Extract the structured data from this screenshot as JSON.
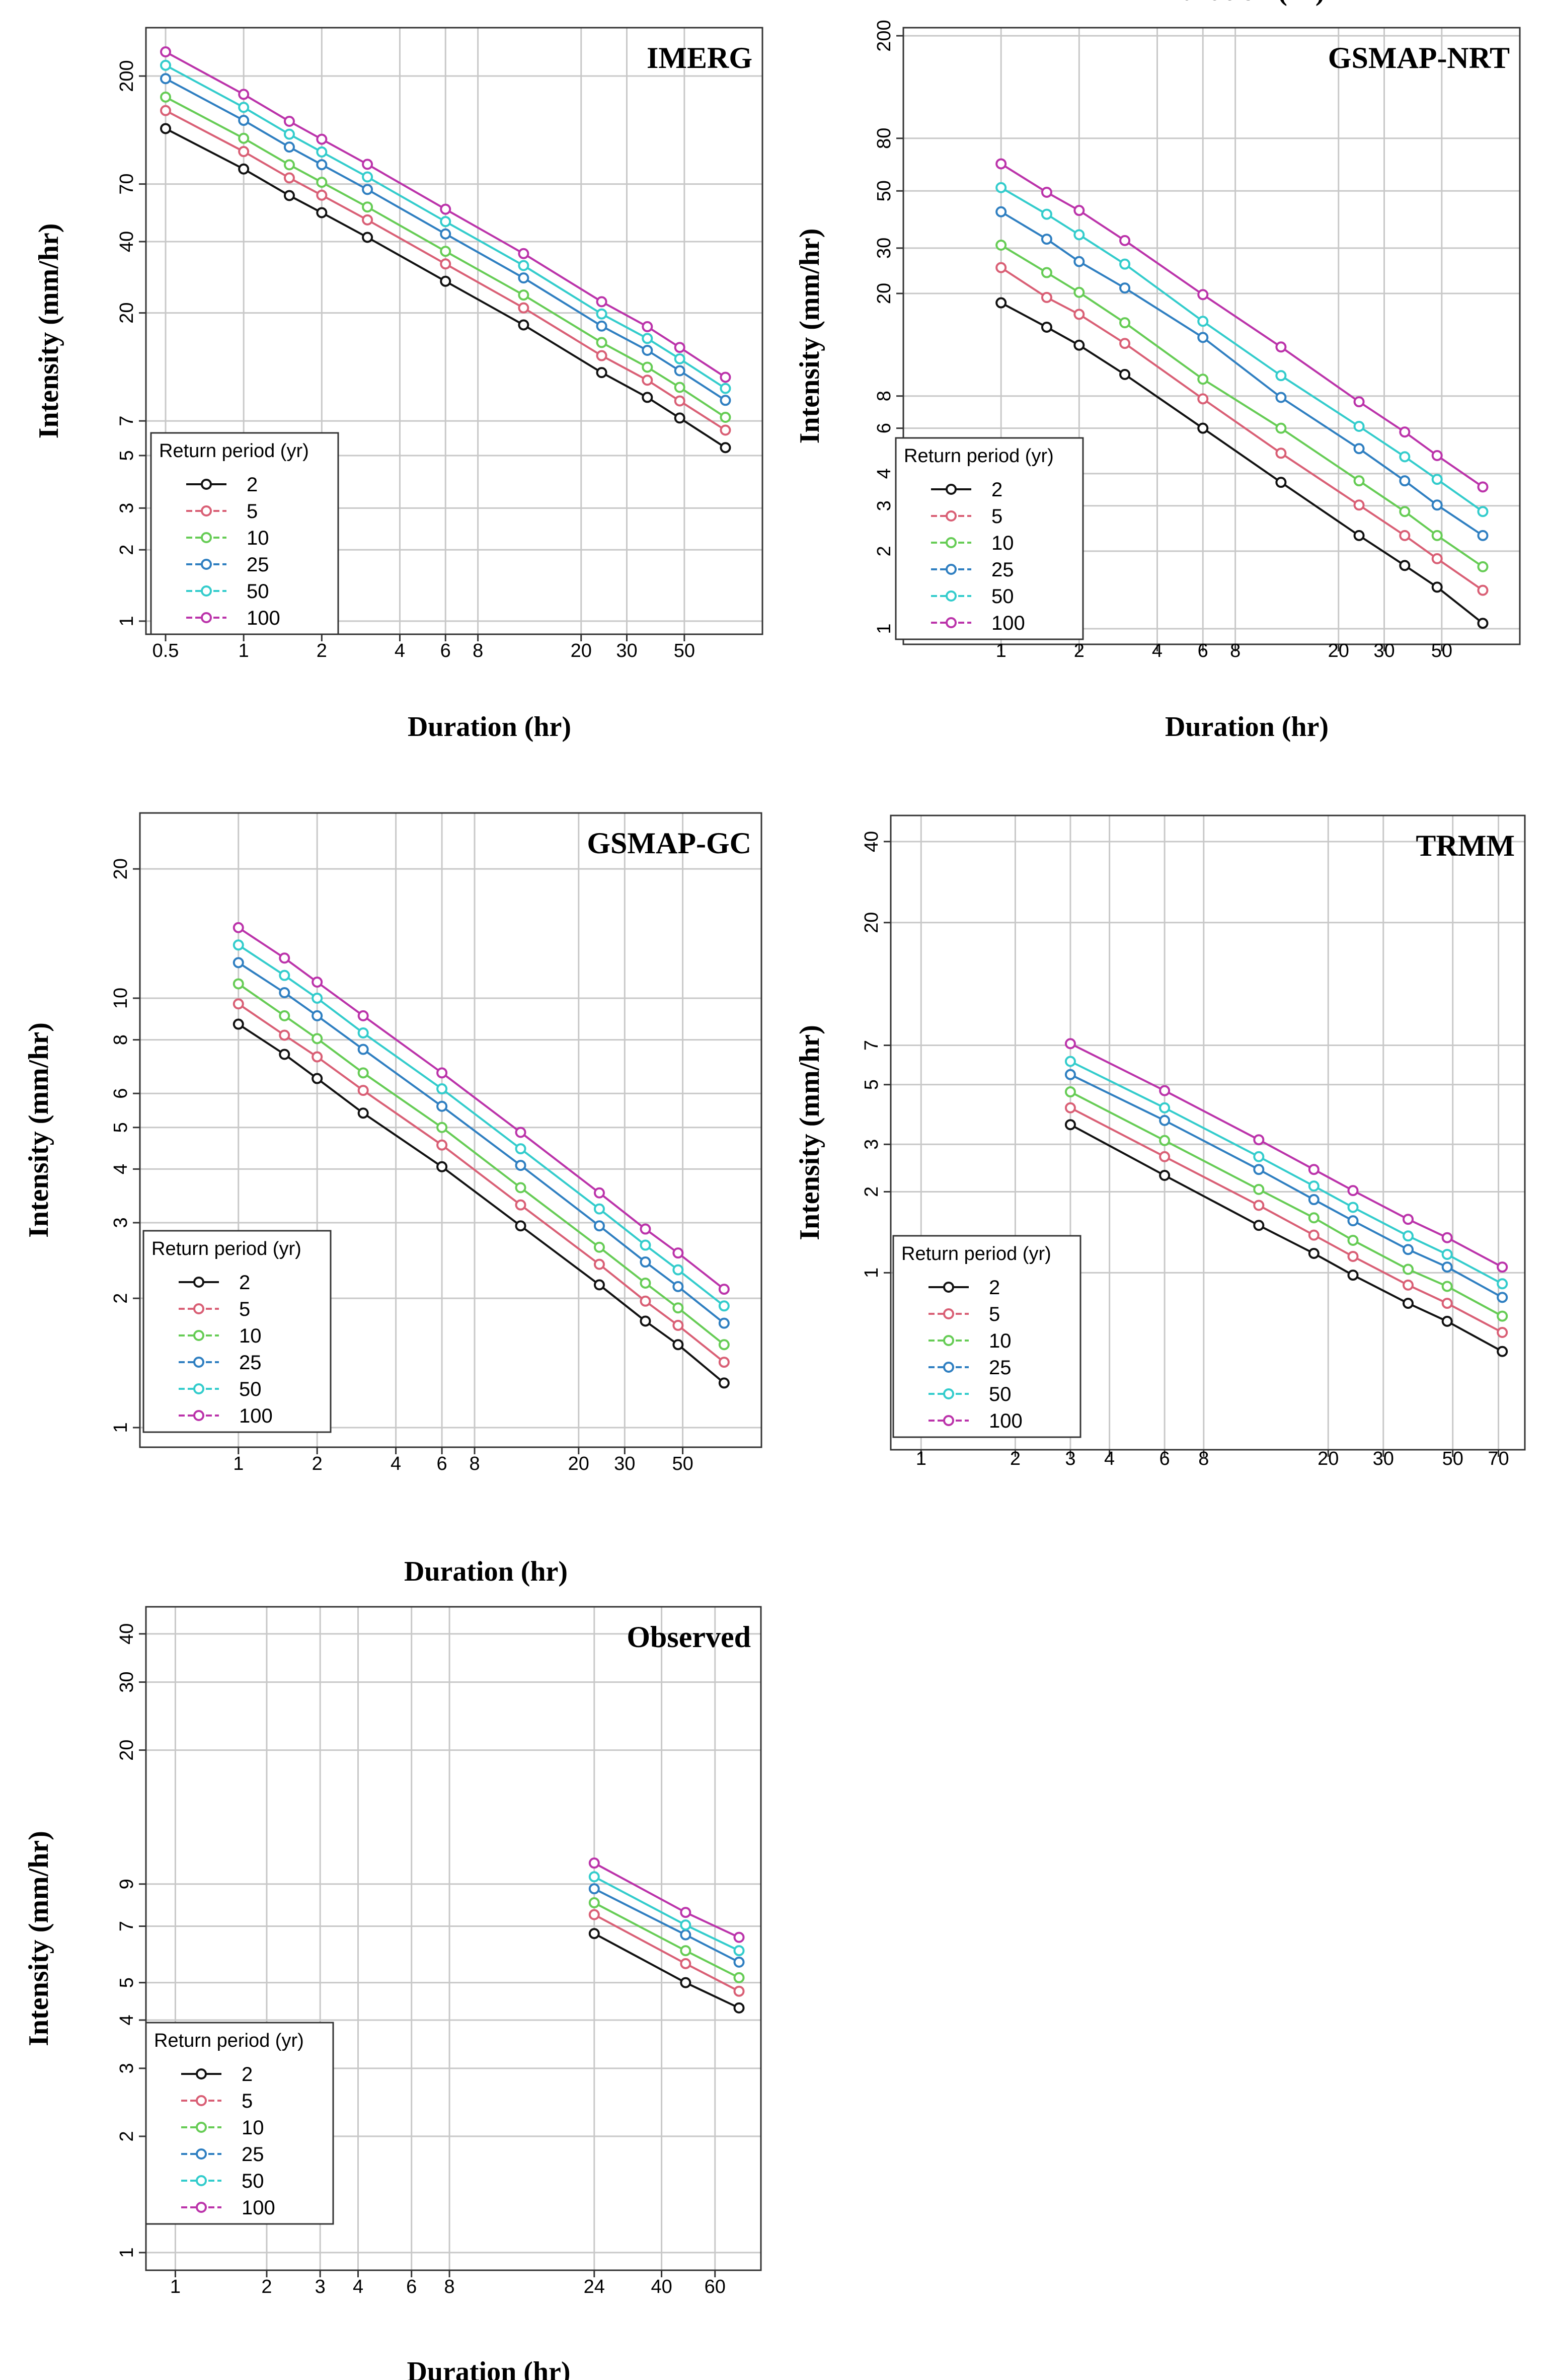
{
  "chart_data": [
    {
      "type": "line",
      "title": "IMERG",
      "xlabel": "Duration (hr)",
      "ylabel": "Intensity (mm/hr)",
      "xlim": [
        0.42,
        100
      ],
      "ylim": [
        0.88,
        320
      ],
      "x_ticks": [
        "0.5",
        "1",
        "2",
        "4",
        "6",
        "8",
        "20",
        "30",
        "50"
      ],
      "y_ticks": [
        "1",
        "2",
        "3",
        "5",
        "7",
        "20",
        "40",
        "70",
        "200"
      ],
      "x": [
        0.5,
        1,
        1.5,
        2,
        3,
        6,
        12,
        24,
        36,
        48,
        72
      ],
      "legend_title": "Return period (yr)",
      "series": [
        {
          "name": "2",
          "color": "#111111",
          "values": [
            120,
            81,
            62.6,
            53,
            41.7,
            27.2,
            17.8,
            11.2,
            8.8,
            7.2,
            5.4
          ]
        },
        {
          "name": "5",
          "color": "#d95f75",
          "values": [
            143,
            96,
            74.3,
            62.8,
            49.4,
            32.2,
            21,
            13.2,
            10.4,
            8.5,
            6.4
          ]
        },
        {
          "name": "10",
          "color": "#66cc55",
          "values": [
            163,
            109.2,
            84.4,
            71.2,
            56,
            36.4,
            23.8,
            15,
            11.8,
            9.7,
            7.25
          ]
        },
        {
          "name": "25",
          "color": "#2f7fc1",
          "values": [
            195,
            130,
            100.3,
            84.5,
            66.4,
            43.1,
            28.1,
            17.6,
            13.9,
            11.4,
            8.55
          ]
        },
        {
          "name": "50",
          "color": "#33cccc",
          "values": [
            222,
            147.5,
            113.6,
            95.6,
            75,
            48.6,
            31.7,
            19.8,
            15.6,
            12.8,
            9.6
          ]
        },
        {
          "name": "100",
          "color": "#bb33aa",
          "values": [
            253,
            167.4,
            128.8,
            108.2,
            84.8,
            54.8,
            35.6,
            22.3,
            17.5,
            14.3,
            10.7
          ]
        }
      ]
    },
    {
      "type": "line",
      "title": "GSMAP-NRT",
      "xlabel": "Duration (hr)",
      "ylabel": "Intensity (mm/hr)",
      "xlim": [
        0.42,
        100
      ],
      "ylim": [
        0.87,
        215
      ],
      "x_ticks": [
        "1",
        "2",
        "4",
        "6",
        "8",
        "20",
        "30",
        "50"
      ],
      "y_ticks": [
        "1",
        "2",
        "3",
        "4",
        "6",
        "8",
        "20",
        "30",
        "50",
        "80",
        "200"
      ],
      "x": [
        1,
        1.5,
        2,
        3,
        6,
        12,
        24,
        36,
        48,
        72
      ],
      "legend_title": "Return period (yr)",
      "series": [
        {
          "name": "2",
          "color": "#111111",
          "values": [
            18.4,
            14.8,
            12.6,
            9.7,
            6,
            3.7,
            2.3,
            1.76,
            1.45,
            1.05
          ]
        },
        {
          "name": "5",
          "color": "#d95f75",
          "values": [
            25.2,
            19.3,
            16.6,
            12.8,
            7.8,
            4.8,
            3.02,
            2.3,
            1.87,
            1.41
          ]
        },
        {
          "name": "10",
          "color": "#66cc55",
          "values": [
            30.8,
            24.1,
            20.2,
            15.4,
            9.3,
            6,
            3.75,
            2.85,
            2.3,
            1.74
          ]
        },
        {
          "name": "25",
          "color": "#2f7fc1",
          "values": [
            41.5,
            32.5,
            26.6,
            21,
            13.5,
            7.9,
            5,
            3.75,
            3.02,
            2.3
          ]
        },
        {
          "name": "50",
          "color": "#33cccc",
          "values": [
            51.5,
            40.6,
            33.8,
            26,
            15.6,
            9.6,
            6.1,
            4.65,
            3.8,
            2.85
          ]
        },
        {
          "name": "100",
          "color": "#bb33aa",
          "values": [
            63.7,
            49.4,
            42,
            32.1,
            19.8,
            12.4,
            7.6,
            5.8,
            4.7,
            3.55
          ]
        }
      ]
    },
    {
      "type": "line",
      "title": "GSMAP-GC",
      "xlabel": "Duration (hr)",
      "ylabel": "Intensity (mm/hr)",
      "xlim": [
        0.42,
        100
      ],
      "ylim": [
        0.9,
        27
      ],
      "x_ticks": [
        "1",
        "2",
        "4",
        "6",
        "8",
        "20",
        "30",
        "50"
      ],
      "y_ticks": [
        "1",
        "2",
        "3",
        "4",
        "5",
        "6",
        "8",
        "10",
        "20"
      ],
      "x": [
        1,
        1.5,
        2,
        3,
        6,
        12,
        24,
        36,
        48,
        72
      ],
      "legend_title": "Return period (yr)",
      "series": [
        {
          "name": "2",
          "color": "#111111",
          "values": [
            8.7,
            7.4,
            6.5,
            5.4,
            4.05,
            2.95,
            2.15,
            1.77,
            1.56,
            1.27
          ]
        },
        {
          "name": "5",
          "color": "#d95f75",
          "values": [
            9.7,
            8.2,
            7.3,
            6.1,
            4.55,
            3.3,
            2.4,
            1.97,
            1.73,
            1.42
          ]
        },
        {
          "name": "10",
          "color": "#66cc55",
          "values": [
            10.8,
            9.1,
            8.05,
            6.7,
            5,
            3.62,
            2.63,
            2.17,
            1.9,
            1.56
          ]
        },
        {
          "name": "25",
          "color": "#2f7fc1",
          "values": [
            12.1,
            10.3,
            9.1,
            7.6,
            5.6,
            4.08,
            2.95,
            2.43,
            2.13,
            1.75
          ]
        },
        {
          "name": "50",
          "color": "#33cccc",
          "values": [
            13.3,
            11.3,
            10,
            8.3,
            6.15,
            4.46,
            3.23,
            2.66,
            2.33,
            1.92
          ]
        },
        {
          "name": "100",
          "color": "#bb33aa",
          "values": [
            14.6,
            12.4,
            10.9,
            9.1,
            6.7,
            4.87,
            3.52,
            2.9,
            2.55,
            2.1
          ]
        }
      ]
    },
    {
      "type": "line",
      "title": "TRMM",
      "xlabel": "Duration (hr)",
      "ylabel": "Intensity (mm/hr)",
      "xlim": [
        0.8,
        85
      ],
      "ylim": [
        0.22,
        50
      ],
      "x_ticks": [
        "1",
        "2",
        "3",
        "4",
        "6",
        "8",
        "20",
        "30",
        "50",
        "70"
      ],
      "y_ticks": [
        "1",
        "2",
        "3",
        "5",
        "7",
        "20",
        "40"
      ],
      "x": [
        3,
        6,
        12,
        18,
        24,
        36,
        48,
        72
      ],
      "legend_title": "Return period (yr)",
      "series": [
        {
          "name": "2",
          "color": "#111111",
          "values": [
            3.55,
            2.3,
            1.5,
            1.18,
            0.98,
            0.77,
            0.66,
            0.51
          ]
        },
        {
          "name": "5",
          "color": "#d95f75",
          "values": [
            4.1,
            2.7,
            1.78,
            1.38,
            1.15,
            0.9,
            0.77,
            0.6
          ]
        },
        {
          "name": "10",
          "color": "#66cc55",
          "values": [
            4.7,
            3.1,
            2.04,
            1.6,
            1.32,
            1.03,
            0.89,
            0.69
          ]
        },
        {
          "name": "25",
          "color": "#2f7fc1",
          "values": [
            5.45,
            3.68,
            2.42,
            1.87,
            1.56,
            1.22,
            1.05,
            0.81
          ]
        },
        {
          "name": "50",
          "color": "#33cccc",
          "values": [
            6.1,
            4.1,
            2.7,
            2.1,
            1.75,
            1.37,
            1.17,
            0.91
          ]
        },
        {
          "name": "100",
          "color": "#bb33aa",
          "values": [
            7.1,
            4.75,
            3.12,
            2.42,
            2.02,
            1.58,
            1.35,
            1.05
          ]
        }
      ]
    },
    {
      "type": "line",
      "title": "Observed",
      "xlabel": "Duration (hr)",
      "ylabel": "Intensity (mm/hr)",
      "xlim": [
        0.8,
        85
      ],
      "ylim": [
        0.9,
        47
      ],
      "x_ticks": [
        "1",
        "2",
        "3",
        "4",
        "6",
        "8",
        "24",
        "40",
        "60"
      ],
      "y_ticks": [
        "1",
        "2",
        "3",
        "4",
        "5",
        "7",
        "9",
        "20",
        "30",
        "40"
      ],
      "x": [
        24,
        48,
        72
      ],
      "legend_title": "Return period (yr)",
      "series": [
        {
          "name": "2",
          "color": "#111111",
          "values": [
            6.7,
            5,
            4.3
          ]
        },
        {
          "name": "5",
          "color": "#d95f75",
          "values": [
            7.5,
            5.6,
            4.75
          ]
        },
        {
          "name": "10",
          "color": "#66cc55",
          "values": [
            8.05,
            6.05,
            5.15
          ]
        },
        {
          "name": "25",
          "color": "#2f7fc1",
          "values": [
            8.75,
            6.65,
            5.65
          ]
        },
        {
          "name": "50",
          "color": "#33cccc",
          "values": [
            9.4,
            7.05,
            6.05
          ]
        },
        {
          "name": "100",
          "color": "#bb33aa",
          "values": [
            10.2,
            7.6,
            6.55
          ]
        }
      ]
    }
  ]
}
